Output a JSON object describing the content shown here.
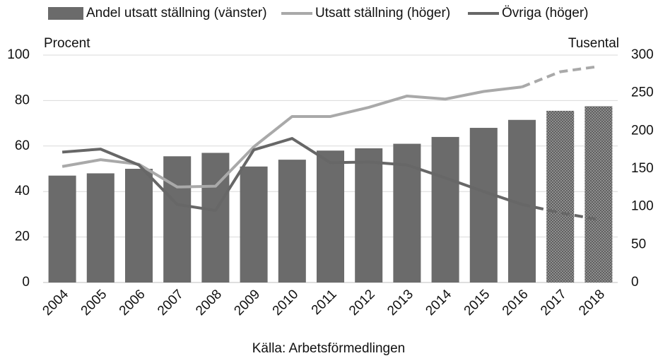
{
  "chart_data": {
    "type": "bar_line",
    "ylabel": "Procent",
    "y2label": "Tusental",
    "source": "Källa: Arbetsförmedlingen",
    "categories": [
      "2004",
      "2005",
      "2006",
      "2007",
      "2008",
      "2009",
      "2010",
      "2011",
      "2012",
      "2013",
      "2014",
      "2015",
      "2016",
      "2017",
      "2018"
    ],
    "forecast_from": "2017",
    "series": [
      {
        "name": "Andel utsatt ställning (vänster)",
        "type": "bar",
        "color": "#6b6b6b",
        "values": [
          47,
          48,
          50,
          55.5,
          57,
          51,
          54,
          58,
          59,
          61,
          64,
          68,
          71.5,
          75.5,
          77.5
        ]
      },
      {
        "name": "Utsatt ställning (höger)",
        "type": "line",
        "axis": "y2",
        "color": "#a9a9a9",
        "values": [
          153,
          162,
          156,
          126,
          127,
          179,
          219,
          219,
          231,
          246,
          242,
          252,
          258,
          278,
          285
        ]
      },
      {
        "name": "Övriga (höger)",
        "type": "line",
        "axis": "y2",
        "color": "#676767",
        "values": [
          172,
          176,
          155,
          103,
          95,
          175,
          190,
          158,
          159,
          155,
          138,
          120,
          103,
          92,
          83
        ]
      }
    ],
    "ylim": [
      0,
      100
    ],
    "yticks": [
      0,
      20,
      40,
      60,
      80,
      100
    ],
    "y2lim": [
      0,
      300
    ],
    "y2ticks": [
      0,
      50,
      100,
      150,
      200,
      250,
      300
    ],
    "grid": true
  }
}
